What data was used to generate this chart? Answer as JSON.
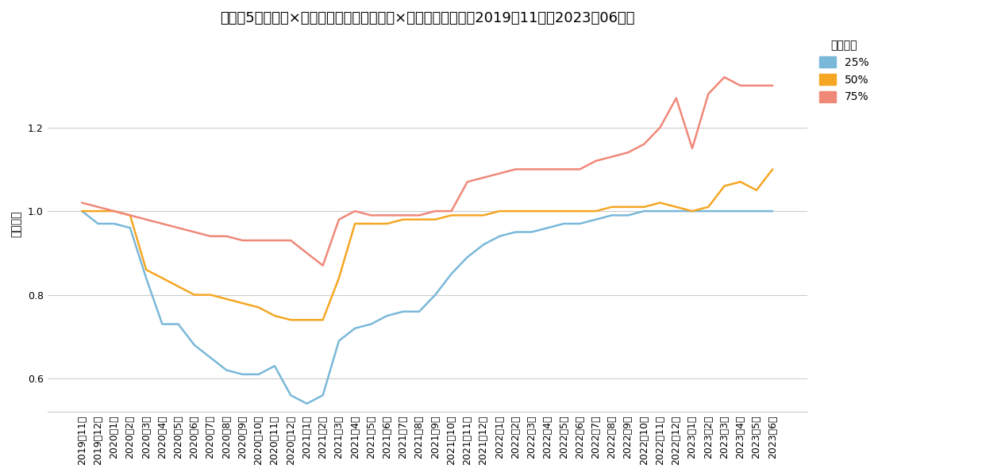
{
  "title": "売上高5億円未満×宿泊業、飲食サービス業×売上高（決算期：2019年11月〜2023年06月）",
  "ylabel": "前年比率",
  "legend_title": "四分位点",
  "legend_labels": [
    "25%",
    "50%",
    "75%"
  ],
  "line_colors": [
    "#7ab8d9",
    "#f5a623",
    "#f08878"
  ],
  "labels": [
    "2019年11月",
    "2019年12月",
    "2020年1月",
    "2020年2月",
    "2020年3月",
    "2020年4月",
    "2020年5月",
    "2020年6月",
    "2020年7月",
    "2020年8月",
    "2020年9月",
    "2020年10月",
    "2020年11月",
    "2020年12月",
    "2021年1月",
    "2021年2月",
    "2021年3月",
    "2021年4月",
    "2021年5月",
    "2021年6月",
    "2021年7月",
    "2021年8月",
    "2021年9月",
    "2021年10月",
    "2021年11月",
    "2021年12月",
    "2022年1月",
    "2022年2月",
    "2022年3月",
    "2022年4月",
    "2022年5月",
    "2022年6月",
    "2022年7月",
    "2022年8月",
    "2022年9月",
    "2022年10月",
    "2022年11月",
    "2022年12月",
    "2023年1月",
    "2023年2月",
    "2023年3月",
    "2023年4月",
    "2023年5月",
    "2023年6月"
  ],
  "q25": [
    1.0,
    0.97,
    0.97,
    0.96,
    0.84,
    0.73,
    0.73,
    0.68,
    0.65,
    0.62,
    0.61,
    0.61,
    0.63,
    0.56,
    0.54,
    0.56,
    0.69,
    0.72,
    0.73,
    0.75,
    0.76,
    0.76,
    0.8,
    0.85,
    0.89,
    0.92,
    0.94,
    0.95,
    0.95,
    0.96,
    0.97,
    0.97,
    0.98,
    0.99,
    0.99,
    1.0,
    1.0,
    1.0,
    1.0,
    1.0,
    1.0,
    1.0,
    1.0,
    1.0
  ],
  "q50": [
    1.0,
    1.0,
    1.0,
    0.99,
    0.86,
    0.84,
    0.82,
    0.8,
    0.8,
    0.79,
    0.78,
    0.77,
    0.75,
    0.74,
    0.74,
    0.74,
    0.84,
    0.97,
    0.97,
    0.97,
    0.98,
    0.98,
    0.98,
    0.99,
    0.99,
    0.99,
    1.0,
    1.0,
    1.0,
    1.0,
    1.0,
    1.0,
    1.0,
    1.01,
    1.01,
    1.01,
    1.02,
    1.01,
    1.0,
    1.01,
    1.06,
    1.07,
    1.05,
    1.1
  ],
  "q75": [
    1.02,
    1.01,
    1.0,
    0.99,
    0.98,
    0.97,
    0.96,
    0.95,
    0.94,
    0.94,
    0.93,
    0.93,
    0.93,
    0.93,
    0.9,
    0.87,
    0.98,
    1.0,
    0.99,
    0.99,
    0.99,
    0.99,
    1.0,
    1.0,
    1.07,
    1.08,
    1.09,
    1.1,
    1.1,
    1.1,
    1.1,
    1.1,
    1.12,
    1.13,
    1.14,
    1.16,
    1.2,
    1.27,
    1.15,
    1.28,
    1.32,
    1.3,
    1.3,
    1.3
  ],
  "ylim": [
    0.52,
    1.42
  ],
  "yticks": [
    0.6,
    0.8,
    1.0,
    1.2
  ],
  "background_color": "#ffffff",
  "grid_color": "#cccccc",
  "title_fontsize": 13,
  "label_fontsize": 10,
  "tick_fontsize": 9
}
